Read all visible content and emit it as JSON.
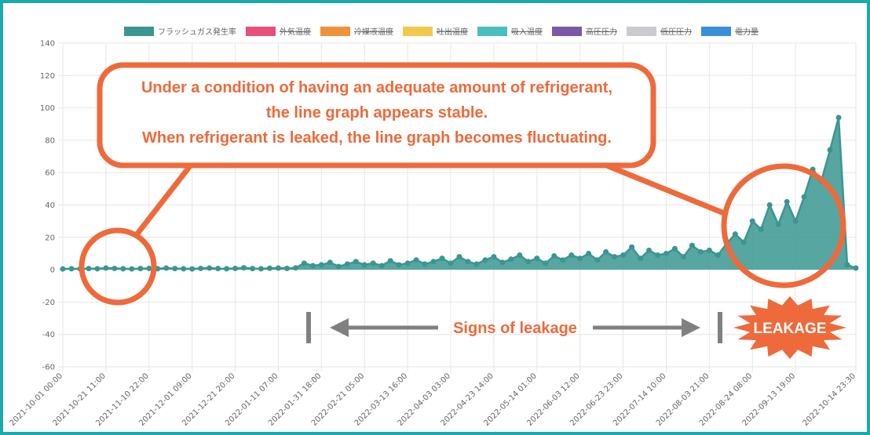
{
  "chart_data": {
    "type": "line",
    "series": [
      {
        "name": "フラッシュガス発生率",
        "color": "#3a9690",
        "values": [
          0.5,
          0.6,
          0.5,
          0.7,
          0.6,
          1,
          0.8,
          0.6,
          0.5,
          0.7,
          0.8,
          0.6,
          1,
          0.7,
          0.6,
          0.5,
          0.8,
          1,
          0.7,
          0.6,
          0.8,
          1.2,
          0.7,
          0.6,
          0.9,
          1,
          0.8,
          1.1,
          4,
          2.5,
          3,
          4.5,
          2,
          3.5,
          5,
          3,
          4,
          2.5,
          5.5,
          3,
          4,
          6,
          3.5,
          5,
          7,
          4,
          8,
          5,
          3.5,
          6,
          8,
          4.5,
          6.5,
          9,
          5,
          7,
          4,
          8.5,
          6,
          9,
          7,
          10,
          6,
          11,
          8,
          9,
          14,
          7,
          12,
          9,
          10,
          13,
          8,
          15,
          11,
          12,
          9,
          16,
          22,
          17,
          30,
          25,
          40,
          28,
          42,
          30,
          45,
          62,
          55,
          74,
          94,
          3,
          1
        ]
      },
      {
        "name": "外気温度",
        "color": "#e8507a",
        "hidden": true
      },
      {
        "name": "冷媒液温度",
        "color": "#f0923a",
        "hidden": true
      },
      {
        "name": "吐出温度",
        "color": "#f2c94c",
        "hidden": true
      },
      {
        "name": "吸入温度",
        "color": "#4bbfbf",
        "hidden": true
      },
      {
        "name": "高圧圧力",
        "color": "#7a5aa8",
        "hidden": true
      },
      {
        "name": "低圧圧力",
        "color": "#c9cbcf",
        "hidden": true
      },
      {
        "name": "電力量",
        "color": "#3a8fd8",
        "hidden": true
      }
    ],
    "categories": [
      "2021-10-01 00:00",
      null,
      null,
      null,
      null,
      "2021-10-21 11:00",
      null,
      null,
      null,
      null,
      "2021-11-10 22:00",
      null,
      null,
      null,
      null,
      "2021-12-01 09:00",
      null,
      null,
      null,
      null,
      "2021-12-21 20:00",
      null,
      null,
      null,
      null,
      "2022-01-11 07:00",
      null,
      null,
      null,
      null,
      "2022-01-31 18:00",
      null,
      null,
      null,
      null,
      "2022-02-21 05:00",
      null,
      null,
      null,
      null,
      "2022-03-13 16:00",
      null,
      null,
      null,
      null,
      "2022-04-03 03:00",
      null,
      null,
      null,
      null,
      "2022-04-23 14:00",
      null,
      null,
      null,
      null,
      "2022-05-14 01:00",
      null,
      null,
      null,
      null,
      "2022-06-03 12:00",
      null,
      null,
      null,
      null,
      "2022-06-23 23:00",
      null,
      null,
      null,
      null,
      "2022-07-14 10:00",
      null,
      null,
      null,
      null,
      "2022-08-03 21:00",
      null,
      null,
      null,
      null,
      "2022-08-24 08:00",
      null,
      null,
      null,
      null,
      "2022-09-13 19:00",
      null,
      null,
      null,
      null,
      null,
      null,
      "2022-10-14 23:30"
    ],
    "ylim": [
      -60,
      140
    ],
    "yticks": [
      -60,
      -40,
      -20,
      0,
      20,
      40,
      60,
      80,
      100,
      120,
      140
    ],
    "grid": true,
    "legend": "top",
    "annotations": {
      "callout": [
        "Under a condition of having an adequate amount of refrigerant,",
        "the line graph appears stable.",
        "When refrigerant is leaked, the line graph becomes fluctuating."
      ],
      "signs": "Signs of leakage",
      "leakage": "LEAKAGE"
    }
  }
}
